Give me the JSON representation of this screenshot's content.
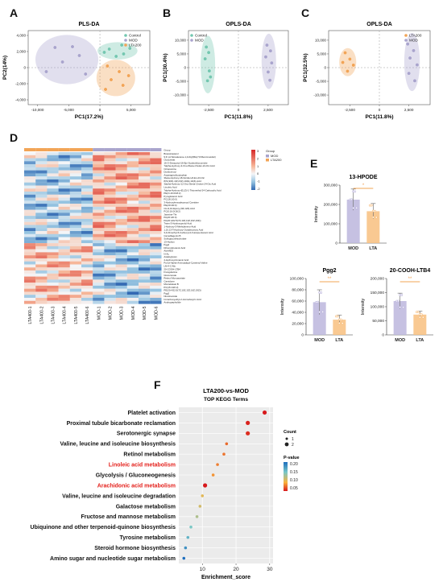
{
  "panels": {
    "A": {
      "letter": "A",
      "chart_data": {
        "type": "scatter",
        "title": "PLS-DA",
        "xlabel": "PC1(17.2%)",
        "ylabel": "PC2(14%)",
        "xticks": [
          "-10,000",
          "-5,000",
          "0",
          "5,000"
        ],
        "yticks": [
          "4,000",
          "2,000",
          "0",
          "-2,000",
          "-4,000"
        ],
        "xlim": [
          -11500,
          8000
        ],
        "ylim": [
          -4600,
          4600
        ],
        "legend": [
          "Control",
          "MOD",
          "LTA200"
        ],
        "legend_position": "top-right",
        "series": [
          {
            "name": "Control",
            "color": "#74c7b0",
            "points": [
              [
                1500,
                2300
              ],
              [
                3500,
                2800
              ],
              [
                4800,
                2400
              ],
              [
                2600,
                1400
              ],
              [
                700,
                1900
              ],
              [
                3800,
                1700
              ]
            ]
          },
          {
            "name": "MOD",
            "color": "#a9a4cd",
            "points": [
              [
                -7200,
                2500
              ],
              [
                -4400,
                2600
              ],
              [
                -3300,
                1500
              ],
              [
                -6000,
                700
              ],
              [
                -2300,
                -800
              ],
              [
                -8600,
                -500
              ]
            ]
          },
          {
            "name": "LTA200",
            "color": "#f2a456",
            "points": [
              [
                1200,
                200
              ],
              [
                3100,
                -500
              ],
              [
                1800,
                -1500
              ],
              [
                3700,
                -2200
              ],
              [
                900,
                -2700
              ],
              [
                4600,
                -1000
              ]
            ]
          }
        ]
      }
    },
    "B": {
      "letter": "B",
      "chart_data": {
        "type": "scatter",
        "title": "OPLS-DA",
        "xlabel": "PC1(11.8%)",
        "ylabel": "PC1(30.4%)",
        "xticks": [
          "-2,500",
          "0",
          "2,500"
        ],
        "yticks": [
          "10,000",
          "5,000",
          "0",
          "-5,000",
          "-10,000"
        ],
        "xlim": [
          -4200,
          4200
        ],
        "ylim": [
          -13500,
          13500
        ],
        "legend": [
          "Control",
          "MOD"
        ],
        "legend_position": "top-left",
        "series": [
          {
            "name": "Control",
            "color": "#74c7b0",
            "points": [
              [
                -2700,
                7500
              ],
              [
                -2500,
                5500
              ],
              [
                -2800,
                3200
              ],
              [
                -2450,
                -1200
              ],
              [
                -2600,
                -4800
              ],
              [
                -2350,
                -3400
              ]
            ]
          },
          {
            "name": "MOD",
            "color": "#a9a4cd",
            "points": [
              [
                2400,
                8200
              ],
              [
                2700,
                6100
              ],
              [
                2300,
                3900
              ],
              [
                2800,
                1700
              ],
              [
                2500,
                -1600
              ],
              [
                2650,
                -4600
              ]
            ]
          }
        ]
      }
    },
    "C": {
      "letter": "C",
      "chart_data": {
        "type": "scatter",
        "title": "OPLS-DA",
        "xlabel": "PC1(11.8%)",
        "ylabel": "PC1(32.5%)",
        "xticks": [
          "-2,500",
          "0",
          "2,500"
        ],
        "yticks": [
          "10,000",
          "5,000",
          "0",
          "-5,000",
          "-10,000"
        ],
        "xlim": [
          -4300,
          4300
        ],
        "ylim": [
          -13500,
          13500
        ],
        "legend": [
          "LTA200",
          "MOD"
        ],
        "legend_position": "top-right",
        "series": [
          {
            "name": "LTA200",
            "color": "#f2a456",
            "points": [
              [
                -2900,
                5400
              ],
              [
                -2500,
                3100
              ],
              [
                -2200,
                900
              ],
              [
                -2700,
                -1300
              ],
              [
                -3100,
                1900
              ]
            ]
          },
          {
            "name": "MOD",
            "color": "#a9a4cd",
            "points": [
              [
                2400,
                8600
              ],
              [
                2900,
                6200
              ],
              [
                2600,
                3500
              ],
              [
                3200,
                1000
              ],
              [
                2500,
                -2100
              ],
              [
                3000,
                -4800
              ]
            ]
          }
        ]
      }
    },
    "D": {
      "letter": "D",
      "chart_data": {
        "type": "heatmap",
        "columns": [
          "LTA400-1",
          "LTA400-2",
          "LTA400-3",
          "LTA400-4",
          "LTA400-5",
          "LTA400-6",
          "MOD-1",
          "MOD-2",
          "MOD-3",
          "MOD-4",
          "MOD-5",
          "MOD-6"
        ],
        "group_label": "Group",
        "legend_groups": [
          "MOD",
          "LTA200"
        ],
        "legend_title": "Group",
        "color_scale_ticks": [
          "3",
          "2",
          "1",
          "0",
          "-1",
          "-2"
        ],
        "row_labels": [
          "Group",
          "Brassicasterol",
          "9,9'-(d-Tetradecane-1,4-Diyl)Bis(7,8-Benzonetdiol)",
          "Octocestat",
          "16-O-Desacetyl-16-Epi-Scabrolidoxoniobe",
          "7alpha-Hydroxy-3-Oxo-5beta-Cholan-24-Oic Acid",
          "Octopamine",
          "Dodecenoyl",
          "Asparaginyltryptophan",
          "3beta-Hydroxy-18-Nordien-8-En-23-Oic",
          "8(S),9(R)-4(Z),6(Z),10(E),13(Z)-Acid",
          "3alpha-Hydroxy-12-Oxo-5beta-Cholan-24-Oic Acid",
          "Linoleic Acid",
          "7alpha-Hydroxy-(E,(Z)-1-Thiomethyl-24-Carboxylic Acid",
          "PE(O-16:0/18:2)",
          "Pyroglutamic Acid",
          "PC(18:1/0:0)",
          "3-Hydroxyhexadecanoyl Carnitine",
          "PE(20:4/0:0)",
          "Cis-9,10-Epoxy-(9Z,12Z)-Acid",
          "PC(0:16:0/18:2)",
          "Jasmine-Thr",
          "PA(20:4/0:0)",
          "PA(20:4/22:5(7Z,10Z,13Z,16Z,19Z))",
          "Trans-3-Hydroxyprolyl Acid",
          "1-Hydroxy-3-Methylamino-Acid",
          "1,10,13-Trihydroxy-Octadecanoic Acid",
          "3,4-Dimethyl-5-Carboxyl-2-Furanpentanoic Acid",
          "Camelliagenin B",
          "Sulfoglycolithocholate",
          "13-Hydrox",
          "Pgg2",
          "Dihomolinolenic Acid",
          "Ala-MEG",
          "N-Ac",
          "Asialoglycan",
          "4-Hydroxycinnamic Acid",
          "Pyrrol-Alpha-Aminoadipyl-Cysteinyl-Valine",
          "LM-4-C-Mo",
          "20-COOH-LTB4",
          "Frangulanine",
          "Glucuronate",
          "Retinol Monoacetate",
          "Carnidone",
          "Montelukast B",
          "PC(15:1/20:2)",
          "PE(20:4/22:5(7Z,10Z,13Z,16Z,19Z))",
          "Pgg2",
          "Nicotinamide",
          "N-Carboxyethyl-2-Aminobutyric Acid",
          "Andrographolide"
        ]
      }
    },
    "E": {
      "letter": "E",
      "charts": [
        {
          "type": "bar",
          "title": "13-HPODE",
          "ylabel": "Intensity",
          "categories": [
            "MOD",
            "LTA"
          ],
          "values": [
            225000,
            165000
          ],
          "errors": [
            55000,
            40000
          ],
          "ylim": [
            0,
            300000
          ],
          "yticks": [
            "300,000",
            "200,000",
            "100,000",
            "0"
          ],
          "significance": "*",
          "colors": [
            "#bcb6dd",
            "#f8bf7f"
          ]
        },
        {
          "type": "bar",
          "title": "Pgg2",
          "ylabel": "Intensity",
          "categories": [
            "MOD",
            "LTA"
          ],
          "values": [
            58000,
            27000
          ],
          "errors": [
            22000,
            8000
          ],
          "ylim": [
            0,
            100000
          ],
          "yticks": [
            "100,000",
            "80,000",
            "60,000",
            "40,000",
            "20,000",
            "0"
          ],
          "significance": "**",
          "colors": [
            "#bcb6dd",
            "#f8bf7f"
          ]
        },
        {
          "type": "bar",
          "title": "20-COOH-LTB4",
          "ylabel": "Intensity",
          "categories": [
            "MOD",
            "LTA"
          ],
          "values": [
            120000,
            72000
          ],
          "errors": [
            28000,
            12000
          ],
          "ylim": [
            0,
            200000
          ],
          "yticks": [
            "200,000",
            "150,000",
            "100,000",
            "50,000",
            "0"
          ],
          "significance": "**",
          "colors": [
            "#bcb6dd",
            "#f8bf7f"
          ]
        }
      ]
    },
    "F": {
      "letter": "F",
      "chart_data": {
        "type": "scatter",
        "title": "LTA200-vs-MOD",
        "subtitle": "TOP KEGG Terms",
        "xlabel": "Enrichment_score",
        "xticks": [
          "10",
          "20",
          "30"
        ],
        "xlim": [
          3,
          31
        ],
        "terms": [
          {
            "name": "Platelet activation",
            "score": 28.5,
            "count": 2,
            "p": 0.05,
            "highlight": false
          },
          {
            "name": "Proximal tubule bicarbonate reclamation",
            "score": 23.5,
            "count": 2,
            "p": 0.055,
            "highlight": false
          },
          {
            "name": "Serotonergic synapse",
            "score": 23.5,
            "count": 2,
            "p": 0.06,
            "highlight": false
          },
          {
            "name": "Valine, leucine and isoleucine biosynthesis",
            "score": 17.2,
            "count": 1,
            "p": 0.09,
            "highlight": false
          },
          {
            "name": "Retinol metabolism",
            "score": 16.4,
            "count": 1,
            "p": 0.095,
            "highlight": false
          },
          {
            "name": "Linoleic acid metabolism",
            "score": 14.5,
            "count": 1,
            "p": 0.1,
            "highlight": true
          },
          {
            "name": "Glycolysis / Gluconeogenesis",
            "score": 13.2,
            "count": 1,
            "p": 0.11,
            "highlight": false
          },
          {
            "name": "Arachidonic acid metabolism",
            "score": 10.8,
            "count": 2,
            "p": 0.05,
            "highlight": true
          },
          {
            "name": "Valine, leucine and isoleucine degradation",
            "score": 10.0,
            "count": 1,
            "p": 0.14,
            "highlight": false
          },
          {
            "name": "Galactose metabolism",
            "score": 9.3,
            "count": 1,
            "p": 0.15,
            "highlight": false
          },
          {
            "name": "Fructose and mannose metabolism",
            "score": 8.4,
            "count": 1,
            "p": 0.17,
            "highlight": false
          },
          {
            "name": "Ubiquinone and other terpenoid-quinone biosynthesis",
            "score": 6.6,
            "count": 1,
            "p": 0.2,
            "highlight": false
          },
          {
            "name": "Tyrosine metabolism",
            "score": 5.7,
            "count": 1,
            "p": 0.22,
            "highlight": false
          },
          {
            "name": "Steroid hormone biosynthesis",
            "score": 5.0,
            "count": 1,
            "p": 0.25,
            "highlight": false
          },
          {
            "name": "Amino sugar and nucleotide sugar metabolism",
            "score": 4.5,
            "count": 1,
            "p": 0.28,
            "highlight": false
          }
        ],
        "legend_count_title": "Count",
        "legend_count_values": [
          "1",
          "2"
        ],
        "legend_p_title": "P-value",
        "legend_p_ticks": [
          "0.20",
          "0.15",
          "0.10",
          "0.05"
        ],
        "highlight_color": "#e4211c"
      }
    }
  }
}
